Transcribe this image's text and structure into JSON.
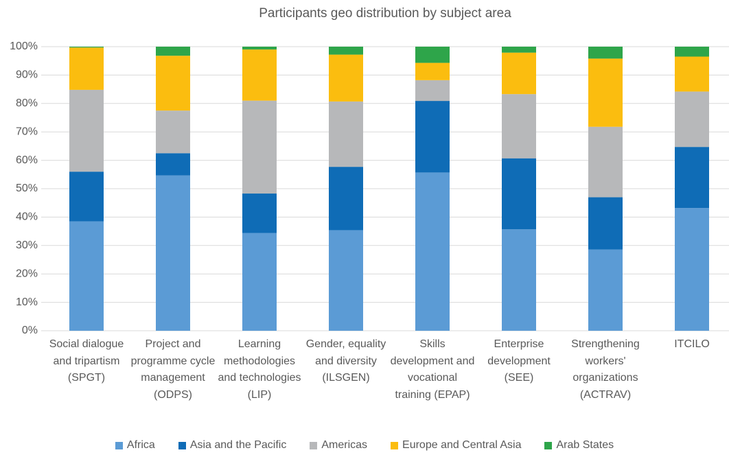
{
  "chart_data": {
    "type": "stacked_bar",
    "title": "Participants geo distribution by subject area",
    "categories": [
      "Social dialogue and tripartism (SPGT)",
      "Project and programme cycle management (ODPS)",
      "Learning methodologies and technologies (LIP)",
      "Gender, equality and diversity (ILSGEN)",
      "Skills development and vocational training (EPAP)",
      "Enterprise development (SEE)",
      "Strengthening workers' organizations (ACTRAV)",
      "ITCILO"
    ],
    "series": [
      {
        "name": "Africa",
        "color": "#5b9bd5",
        "values": [
          38.5,
          54.7,
          34.4,
          35.4,
          55.7,
          35.7,
          28.6,
          43.2
        ]
      },
      {
        "name": "Asia and the Pacific",
        "color": "#0f6cb6",
        "values": [
          17.5,
          7.8,
          13.9,
          22.3,
          25.2,
          25.0,
          18.4,
          21.5
        ]
      },
      {
        "name": "Americas",
        "color": "#b7b8ba",
        "values": [
          28.8,
          15.0,
          32.7,
          23.0,
          7.3,
          22.6,
          24.8,
          19.5
        ]
      },
      {
        "name": "Europe and Central Asia",
        "color": "#fbbd0f",
        "values": [
          14.9,
          19.3,
          18.0,
          16.5,
          6.1,
          14.6,
          24.0,
          12.3
        ]
      },
      {
        "name": "Arab States",
        "color": "#2ea54a",
        "values": [
          0.3,
          3.2,
          1.0,
          2.8,
          5.7,
          2.1,
          4.2,
          3.5
        ]
      }
    ],
    "ylim": [
      0,
      100
    ],
    "yticks": [
      {
        "value": 0,
        "label": "0%"
      },
      {
        "value": 10,
        "label": "10%"
      },
      {
        "value": 20,
        "label": "20%"
      },
      {
        "value": 30,
        "label": "30%"
      },
      {
        "value": 40,
        "label": "40%"
      },
      {
        "value": 50,
        "label": "50%"
      },
      {
        "value": 60,
        "label": "60%"
      },
      {
        "value": 70,
        "label": "70%"
      },
      {
        "value": 80,
        "label": "80%"
      },
      {
        "value": 90,
        "label": "90%"
      },
      {
        "value": 100,
        "label": "100%"
      }
    ],
    "grid": true
  }
}
